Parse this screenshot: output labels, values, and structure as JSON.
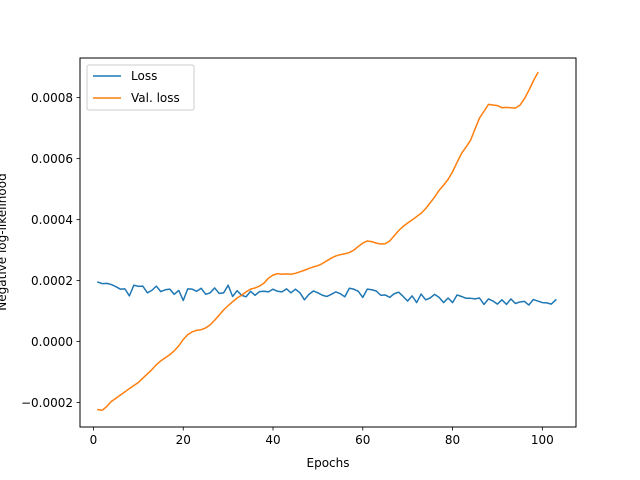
{
  "chart_data": {
    "type": "line",
    "title": "",
    "xlabel": "Epochs",
    "ylabel": "Negative log-likelihood",
    "xlim": [
      -3,
      107.5
    ],
    "ylim": [
      -0.00028,
      0.00093
    ],
    "xticks": [
      0,
      20,
      40,
      60,
      80,
      100
    ],
    "yticks": [
      -0.0002,
      0.0,
      0.0002,
      0.0004,
      0.0006,
      0.0008
    ],
    "ytick_labels": [
      "−0.0002",
      "0.0000",
      "0.0002",
      "0.0004",
      "0.0006",
      "0.0008"
    ],
    "grid": false,
    "legend_position": "top-left",
    "series": [
      {
        "name": "Loss",
        "color": "#1f77b4",
        "points": [
          [
            1,
            0.000195
          ],
          [
            2,
            0.00019
          ],
          [
            3,
            0.000191
          ],
          [
            4,
            0.000187
          ],
          [
            5,
            0.00018
          ],
          [
            6,
            0.000172
          ],
          [
            7,
            0.000173
          ],
          [
            8,
            0.00015
          ],
          [
            9,
            0.000185
          ],
          [
            10,
            0.000181
          ],
          [
            11,
            0.000182
          ],
          [
            12,
            0.00016
          ],
          [
            13,
            0.000168
          ],
          [
            14,
            0.000182
          ],
          [
            15,
            0.000164
          ],
          [
            16,
            0.00017
          ],
          [
            17,
            0.000172
          ],
          [
            18,
            0.000155
          ],
          [
            19,
            0.000168
          ],
          [
            20,
            0.000135
          ],
          [
            21,
            0.000173
          ],
          [
            22,
            0.000172
          ],
          [
            23,
            0.000165
          ],
          [
            24,
            0.000175
          ],
          [
            25,
            0.000155
          ],
          [
            26,
            0.00016
          ],
          [
            27,
            0.000176
          ],
          [
            28,
            0.000158
          ],
          [
            29,
            0.00016
          ],
          [
            30,
            0.000185
          ],
          [
            31,
            0.000148
          ],
          [
            32,
            0.000167
          ],
          [
            33,
            0.000152
          ],
          [
            34,
            0.000147
          ],
          [
            35,
            0.000165
          ],
          [
            36,
            0.000152
          ],
          [
            37,
            0.000164
          ],
          [
            38,
            0.000165
          ],
          [
            39,
            0.000163
          ],
          [
            40,
            0.000172
          ],
          [
            41,
            0.000165
          ],
          [
            42,
            0.000163
          ],
          [
            43,
            0.000173
          ],
          [
            44,
            0.00016
          ],
          [
            45,
            0.000172
          ],
          [
            46,
            0.00016
          ],
          [
            47,
            0.000137
          ],
          [
            48,
            0.000155
          ],
          [
            49,
            0.000166
          ],
          [
            50,
            0.00016
          ],
          [
            51,
            0.000152
          ],
          [
            52,
            0.000148
          ],
          [
            53,
            0.000155
          ],
          [
            54,
            0.000163
          ],
          [
            55,
            0.000157
          ],
          [
            56,
            0.000147
          ],
          [
            57,
            0.000175
          ],
          [
            58,
            0.000172
          ],
          [
            59,
            0.000165
          ],
          [
            60,
            0.000145
          ],
          [
            61,
            0.000172
          ],
          [
            62,
            0.00017
          ],
          [
            63,
            0.000166
          ],
          [
            64,
            0.000152
          ],
          [
            65,
            0.000153
          ],
          [
            66,
            0.000145
          ],
          [
            67,
            0.000157
          ],
          [
            68,
            0.000162
          ],
          [
            69,
            0.000148
          ],
          [
            70,
            0.000133
          ],
          [
            71,
            0.00015
          ],
          [
            72,
            0.000128
          ],
          [
            73,
            0.000156
          ],
          [
            74,
            0.000137
          ],
          [
            75,
            0.000143
          ],
          [
            76,
            0.000155
          ],
          [
            77,
            0.000145
          ],
          [
            78,
            0.000128
          ],
          [
            79,
            0.000143
          ],
          [
            80,
            0.000128
          ],
          [
            81,
            0.000153
          ],
          [
            82,
            0.000148
          ],
          [
            83,
            0.000142
          ],
          [
            84,
            0.000142
          ],
          [
            85,
            0.00014
          ],
          [
            86,
            0.000143
          ],
          [
            87,
            0.000122
          ],
          [
            88,
            0.00014
          ],
          [
            89,
            0.000133
          ],
          [
            90,
            0.000123
          ],
          [
            91,
            0.000137
          ],
          [
            92,
            0.000122
          ],
          [
            93,
            0.00014
          ],
          [
            94,
            0.000125
          ],
          [
            95,
            0.00013
          ],
          [
            96,
            0.000132
          ],
          [
            97,
            0.00012
          ],
          [
            98,
            0.000138
          ],
          [
            99,
            0.000133
          ],
          [
            100,
            0.000128
          ],
          [
            101,
            0.000127
          ],
          [
            102,
            0.000123
          ],
          [
            103,
            0.000137
          ]
        ]
      },
      {
        "name": "Val. loss",
        "color": "#ff7f0e",
        "points": [
          [
            1,
            -0.000223
          ],
          [
            2,
            -0.000225
          ],
          [
            3,
            -0.000212
          ],
          [
            4,
            -0.000196
          ],
          [
            5,
            -0.000186
          ],
          [
            6,
            -0.000175
          ],
          [
            7,
            -0.000165
          ],
          [
            8,
            -0.000154
          ],
          [
            9,
            -0.000144
          ],
          [
            10,
            -0.000134
          ],
          [
            11,
            -0.00012
          ],
          [
            12,
            -0.000106
          ],
          [
            13,
            -9.2e-05
          ],
          [
            14,
            -7.6e-05
          ],
          [
            15,
            -6.3e-05
          ],
          [
            16,
            -5.3e-05
          ],
          [
            17,
            -4.3e-05
          ],
          [
            18,
            -3e-05
          ],
          [
            19,
            -1.4e-05
          ],
          [
            20,
            7e-06
          ],
          [
            21,
            2.3e-05
          ],
          [
            22,
            3.2e-05
          ],
          [
            23,
            3.7e-05
          ],
          [
            24,
            3.9e-05
          ],
          [
            25,
            4.5e-05
          ],
          [
            26,
            5.5e-05
          ],
          [
            27,
            7e-05
          ],
          [
            28,
            8.7e-05
          ],
          [
            29,
            0.000104
          ],
          [
            30,
            0.000118
          ],
          [
            31,
            0.000131
          ],
          [
            32,
            0.000143
          ],
          [
            33,
            0.000152
          ],
          [
            34,
            0.000163
          ],
          [
            35,
            0.000172
          ],
          [
            36,
            0.000176
          ],
          [
            37,
            0.000182
          ],
          [
            38,
            0.000192
          ],
          [
            39,
            0.000208
          ],
          [
            40,
            0.000218
          ],
          [
            41,
            0.000223
          ],
          [
            42,
            0.000221
          ],
          [
            43,
            0.000222
          ],
          [
            44,
            0.000221
          ],
          [
            45,
            0.000224
          ],
          [
            46,
            0.000229
          ],
          [
            47,
            0.000234
          ],
          [
            48,
            0.00024
          ],
          [
            49,
            0.000245
          ],
          [
            50,
            0.000249
          ],
          [
            51,
            0.000256
          ],
          [
            52,
            0.000265
          ],
          [
            53,
            0.000274
          ],
          [
            54,
            0.000281
          ],
          [
            55,
            0.000285
          ],
          [
            56,
            0.000288
          ],
          [
            57,
            0.000292
          ],
          [
            58,
            0.0003
          ],
          [
            59,
            0.000312
          ],
          [
            60,
            0.000323
          ],
          [
            61,
            0.00033
          ],
          [
            62,
            0.000328
          ],
          [
            63,
            0.000323
          ],
          [
            64,
            0.00032
          ],
          [
            65,
            0.000321
          ],
          [
            66,
            0.00033
          ],
          [
            67,
            0.000347
          ],
          [
            68,
            0.000364
          ],
          [
            69,
            0.000378
          ],
          [
            70,
            0.000389
          ],
          [
            71,
            0.000399
          ],
          [
            72,
            0.00041
          ],
          [
            73,
            0.000421
          ],
          [
            74,
            0.000436
          ],
          [
            75,
            0.000455
          ],
          [
            76,
            0.000474
          ],
          [
            77,
            0.000496
          ],
          [
            78,
            0.000513
          ],
          [
            79,
            0.000532
          ],
          [
            80,
            0.000557
          ],
          [
            81,
            0.000588
          ],
          [
            82,
            0.000617
          ],
          [
            83,
            0.000638
          ],
          [
            84,
            0.00066
          ],
          [
            85,
            0.000697
          ],
          [
            86,
            0.000733
          ],
          [
            87,
            0.000755
          ],
          [
            88,
            0.000778
          ],
          [
            89,
            0.000776
          ],
          [
            90,
            0.000774
          ],
          [
            91,
            0.000767
          ],
          [
            92,
            0.000768
          ],
          [
            93,
            0.000767
          ],
          [
            94,
            0.000766
          ],
          [
            95,
            0.000775
          ],
          [
            96,
            0.000796
          ],
          [
            97,
            0.000824
          ],
          [
            98,
            0.000855
          ],
          [
            99,
            0.000882
          ]
        ]
      }
    ]
  }
}
